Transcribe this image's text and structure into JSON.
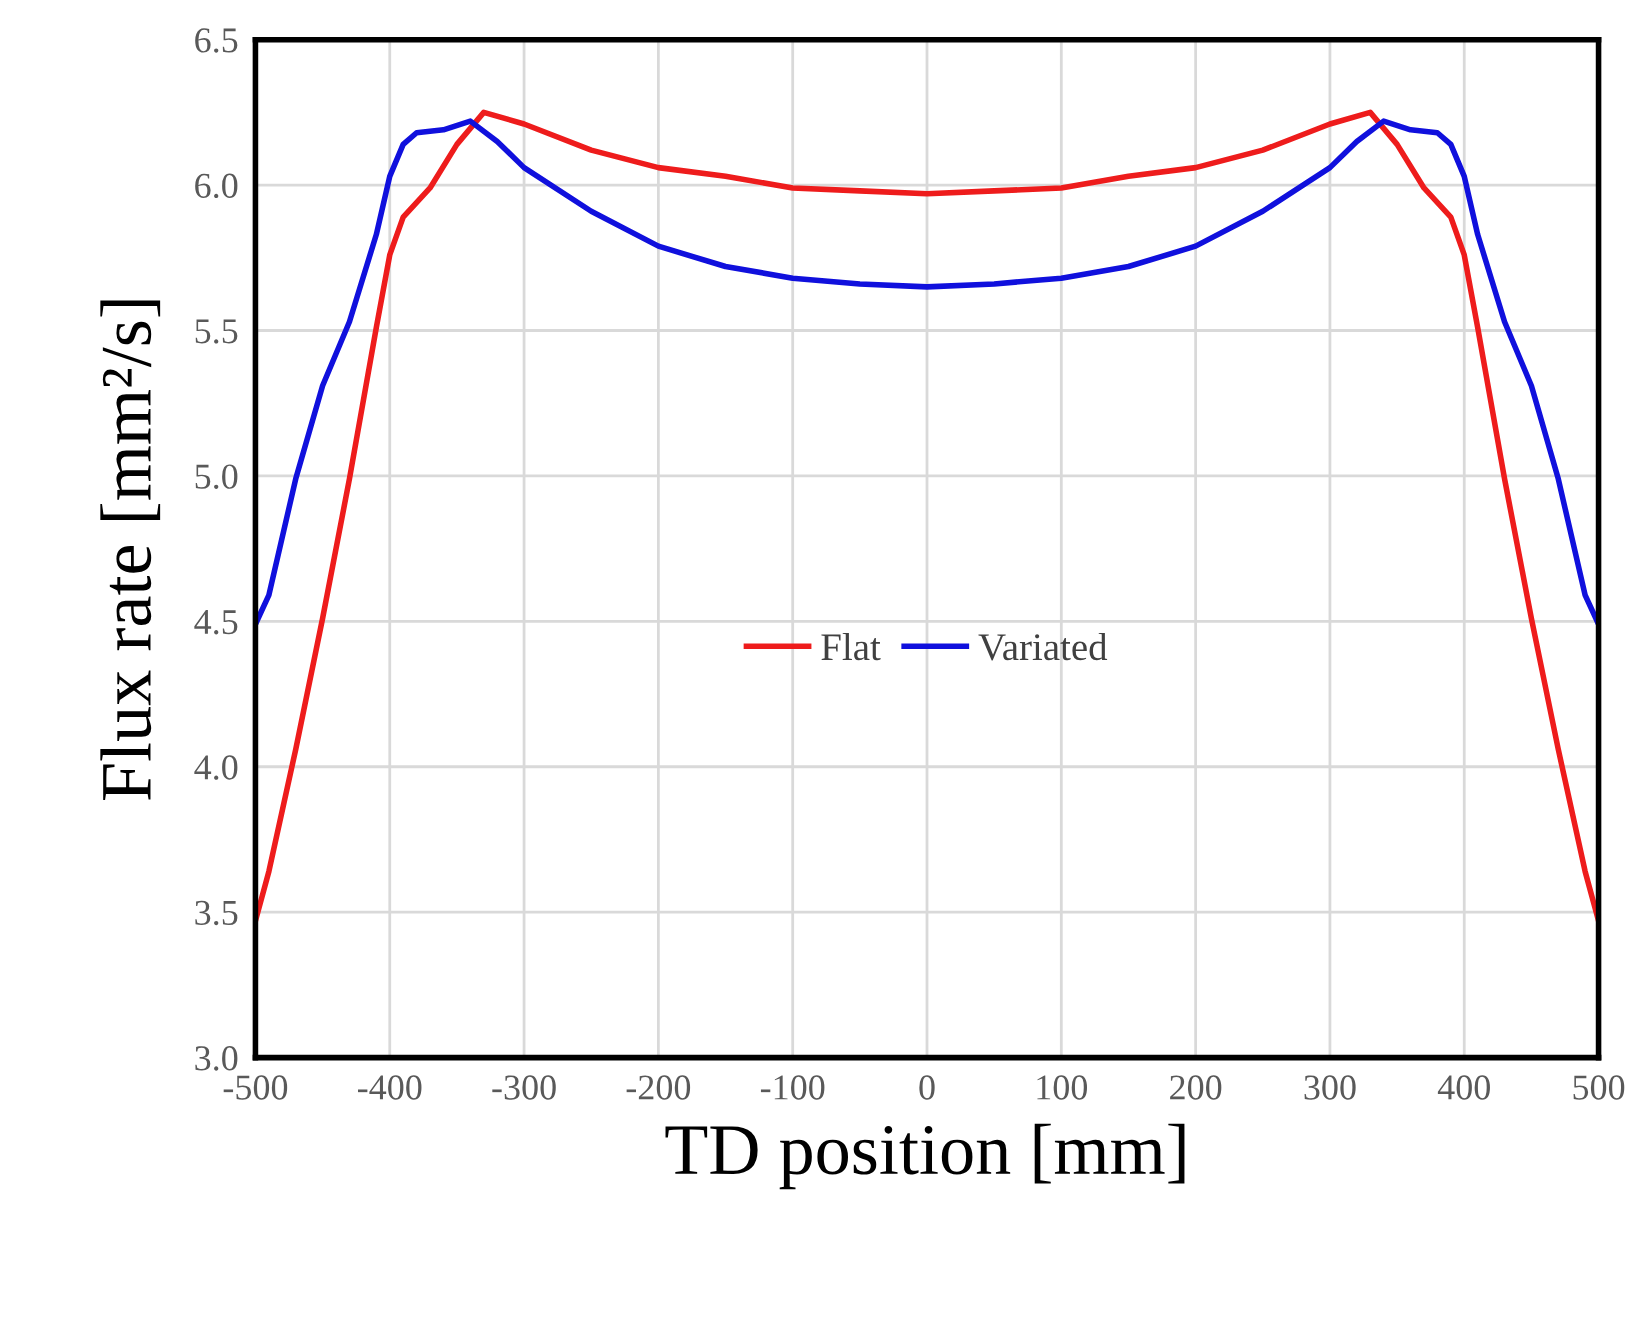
{
  "chart_data": {
    "type": "line",
    "xlabel": "TD position [mm]",
    "ylabel": "Flux rate [mm²/s]",
    "xlim": [
      -500,
      500
    ],
    "xticks": [
      -500,
      -400,
      -300,
      -200,
      -100,
      0,
      100,
      200,
      300,
      400,
      500
    ],
    "ylim": [
      3.0,
      6.5
    ],
    "yticks": [
      {
        "value": 3.0,
        "label": "3.0"
      },
      3.5,
      {
        "value": 4.0,
        "label": "4.0"
      },
      4.5,
      {
        "value": 5.0,
        "label": "5.0"
      },
      5.5,
      {
        "value": 6.0,
        "label": "6.0"
      },
      6.5
    ],
    "grid": true,
    "legend": "center",
    "marker": "none",
    "line_style": "solid",
    "series": [
      {
        "name": "Flat",
        "color": "#ee1c1c",
        "x": [
          -500,
          -490,
          -470,
          -450,
          -430,
          -410,
          -400,
          -390,
          -370,
          -350,
          -330,
          -300,
          -250,
          -200,
          -150,
          -100,
          -50,
          0,
          50,
          100,
          150,
          200,
          250,
          300,
          330,
          350,
          370,
          390,
          400,
          410,
          430,
          450,
          470,
          490,
          500
        ],
        "values": [
          3.47,
          3.64,
          4.06,
          4.51,
          4.99,
          5.51,
          5.76,
          5.89,
          5.99,
          6.14,
          6.25,
          6.21,
          6.12,
          6.06,
          6.03,
          5.99,
          5.98,
          5.97,
          5.98,
          5.99,
          6.03,
          6.06,
          6.12,
          6.21,
          6.25,
          6.14,
          5.99,
          5.89,
          5.76,
          5.51,
          4.99,
          4.51,
          4.06,
          3.64,
          3.47
        ]
      },
      {
        "name": "Variated",
        "color": "#1010dd",
        "x": [
          -500,
          -490,
          -470,
          -450,
          -430,
          -410,
          -400,
          -390,
          -380,
          -360,
          -340,
          -320,
          -300,
          -250,
          -200,
          -150,
          -100,
          -50,
          0,
          50,
          100,
          150,
          200,
          250,
          300,
          320,
          340,
          360,
          380,
          390,
          400,
          410,
          430,
          450,
          470,
          490,
          500
        ],
        "values": [
          4.49,
          4.59,
          4.99,
          5.31,
          5.53,
          5.83,
          6.03,
          6.14,
          6.18,
          6.19,
          6.22,
          6.15,
          6.06,
          5.91,
          5.79,
          5.72,
          5.68,
          5.66,
          5.65,
          5.66,
          5.68,
          5.72,
          5.79,
          5.91,
          6.06,
          6.15,
          6.22,
          6.19,
          6.18,
          6.14,
          6.03,
          5.83,
          5.53,
          5.31,
          4.99,
          4.59,
          4.49
        ]
      }
    ]
  }
}
